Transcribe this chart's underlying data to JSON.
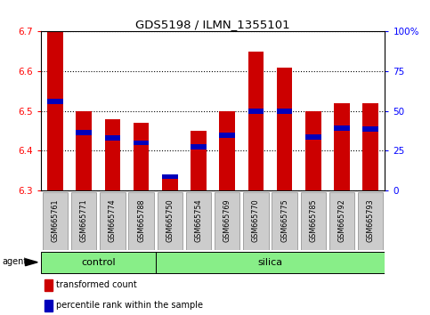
{
  "title": "GDS5198 / ILMN_1355101",
  "samples": [
    "GSM665761",
    "GSM665771",
    "GSM665774",
    "GSM665788",
    "GSM665750",
    "GSM665754",
    "GSM665769",
    "GSM665770",
    "GSM665775",
    "GSM665785",
    "GSM665792",
    "GSM665793"
  ],
  "groups": [
    "control",
    "control",
    "control",
    "control",
    "silica",
    "silica",
    "silica",
    "silica",
    "silica",
    "silica",
    "silica",
    "silica"
  ],
  "red_values": [
    6.7,
    6.5,
    6.48,
    6.47,
    6.34,
    6.45,
    6.5,
    6.65,
    6.61,
    6.5,
    6.52,
    6.52
  ],
  "blue_values": [
    6.525,
    6.445,
    6.432,
    6.42,
    6.335,
    6.41,
    6.44,
    6.5,
    6.5,
    6.435,
    6.457,
    6.455
  ],
  "ymin": 6.3,
  "ymax": 6.7,
  "y_ticks": [
    6.3,
    6.4,
    6.5,
    6.6,
    6.7
  ],
  "y2_ticks": [
    0,
    25,
    50,
    75,
    100
  ],
  "y2_labels": [
    "0",
    "25",
    "50",
    "75",
    "100%"
  ],
  "bar_color": "#cc0000",
  "blue_color": "#0000bb",
  "group_color": "#88ee88",
  "agent_label": "agent",
  "legend_red": "transformed count",
  "legend_blue": "percentile rank within the sample",
  "n_control": 4,
  "n_silica": 8
}
